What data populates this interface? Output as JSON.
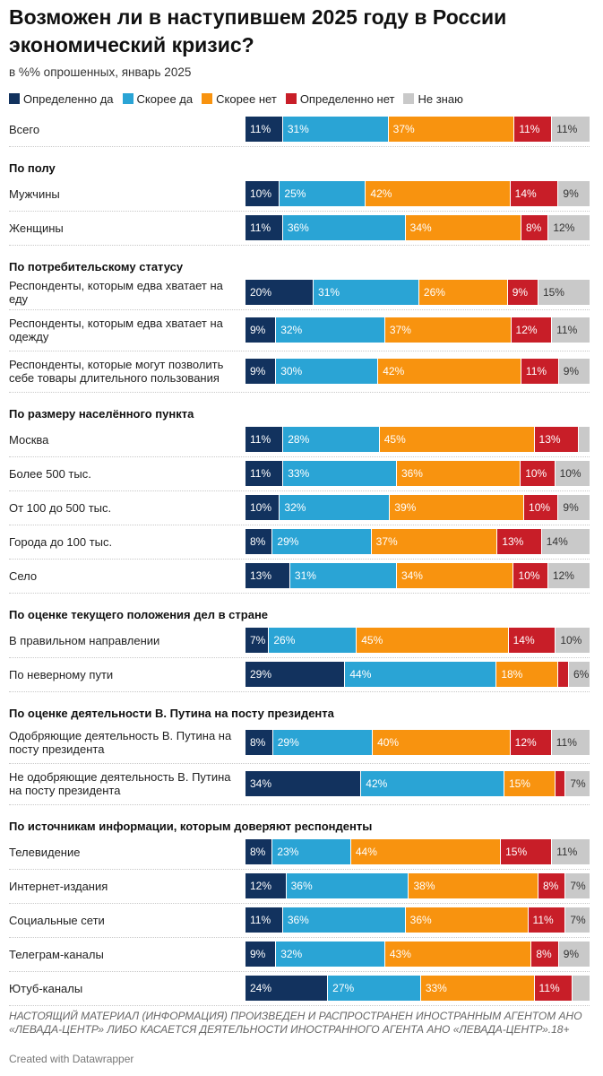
{
  "title": "Возможен ли в наступившем 2025 году в России экономический кризис?",
  "subtitle": "в %% опрошенных, январь 2025",
  "colors": {
    "def_yes": "#12325e",
    "rather_yes": "#2aa4d5",
    "rather_no": "#f8930f",
    "def_no": "#c81e28",
    "dont_know": "#c9c9c9"
  },
  "chart_data": {
    "type": "bar",
    "orientation": "horizontal",
    "stacked": true,
    "unit": "%",
    "title": "Возможен ли в наступившем 2025 году в России экономический кризис?",
    "subtitle": "в %% опрошенных, январь 2025",
    "series_keys": [
      "def_yes",
      "rather_yes",
      "rather_no",
      "def_no",
      "dont_know"
    ],
    "legend": [
      {
        "key": "def_yes",
        "name": "Определенно да"
      },
      {
        "key": "rather_yes",
        "name": "Скорее да"
      },
      {
        "key": "rather_no",
        "name": "Скорее нет"
      },
      {
        "key": "def_no",
        "name": "Определенно нет"
      },
      {
        "key": "dont_know",
        "name": "Не знаю"
      }
    ],
    "groups": [
      {
        "header": "",
        "rows": [
          {
            "label": "Всего",
            "values": [
              11,
              31,
              37,
              11,
              11
            ]
          }
        ]
      },
      {
        "header": "По полу",
        "rows": [
          {
            "label": "Мужчины",
            "values": [
              10,
              25,
              42,
              14,
              9
            ]
          },
          {
            "label": "Женщины",
            "values": [
              11,
              36,
              34,
              8,
              12
            ]
          }
        ]
      },
      {
        "header": "По потребительскому статусу",
        "rows": [
          {
            "label": "Респонденты, которым едва хватает на еду",
            "values": [
              20,
              31,
              26,
              9,
              15
            ]
          },
          {
            "label": "Респонденты, которым едва хватает на одежду",
            "values": [
              9,
              32,
              37,
              12,
              11
            ]
          },
          {
            "label": "Респонденты, которые могут позволить себе товары длительного пользования",
            "values": [
              9,
              30,
              42,
              11,
              9
            ]
          }
        ]
      },
      {
        "header": "По размеру населённого пункта",
        "rows": [
          {
            "label": "Москва",
            "values": [
              11,
              28,
              45,
              13,
              3
            ]
          },
          {
            "label": "Более 500 тыс.",
            "values": [
              11,
              33,
              36,
              10,
              10
            ]
          },
          {
            "label": "От 100 до 500 тыс.",
            "values": [
              10,
              32,
              39,
              10,
              9
            ]
          },
          {
            "label": "Города до 100 тыс.",
            "values": [
              8,
              29,
              37,
              13,
              14
            ]
          },
          {
            "label": "Село",
            "values": [
              13,
              31,
              34,
              10,
              12
            ]
          }
        ]
      },
      {
        "header": "По оценке текущего положения дел в стране",
        "rows": [
          {
            "label": "В правильном направлении",
            "values": [
              7,
              26,
              45,
              14,
              10
            ]
          },
          {
            "label": "По неверному пути",
            "values": [
              29,
              44,
              18,
              3,
              6
            ]
          }
        ]
      },
      {
        "header": "По оценке деятельности В. Путина на посту президента",
        "rows": [
          {
            "label": "Одобряющие деятельность В. Путина на посту президента",
            "values": [
              8,
              29,
              40,
              12,
              11
            ]
          },
          {
            "label": "Не одобряющие деятельность В. Путина на посту президента",
            "values": [
              34,
              42,
              15,
              3,
              7
            ]
          }
        ]
      },
      {
        "header": "По источникам информации, которым доверяют респонденты",
        "rows": [
          {
            "label": "Телевидение",
            "values": [
              8,
              23,
              44,
              15,
              11
            ]
          },
          {
            "label": "Интернет-издания",
            "values": [
              12,
              36,
              38,
              8,
              7
            ]
          },
          {
            "label": "Социальные сети",
            "values": [
              11,
              36,
              36,
              11,
              7
            ]
          },
          {
            "label": "Телеграм-каналы",
            "values": [
              9,
              32,
              43,
              8,
              9
            ]
          },
          {
            "label": "Ютуб-каналы",
            "values": [
              24,
              27,
              33,
              11,
              5
            ]
          }
        ]
      }
    ]
  },
  "footnote": "НАСТОЯЩИЙ МАТЕРИАЛ (ИНФОРМАЦИЯ) ПРОИЗВЕДЕН И РАСПРОСТРАНЕН ИНОСТРАННЫМ АГЕНТОМ АНО «ЛЕВАДА-ЦЕНТР» ЛИБО КАСАЕТСЯ ДЕЯТЕЛЬНОСТИ ИНОСТРАННОГО АГЕНТА АНО «ЛЕВАДА-ЦЕНТР».18+",
  "credit": "Created with Datawrapper"
}
